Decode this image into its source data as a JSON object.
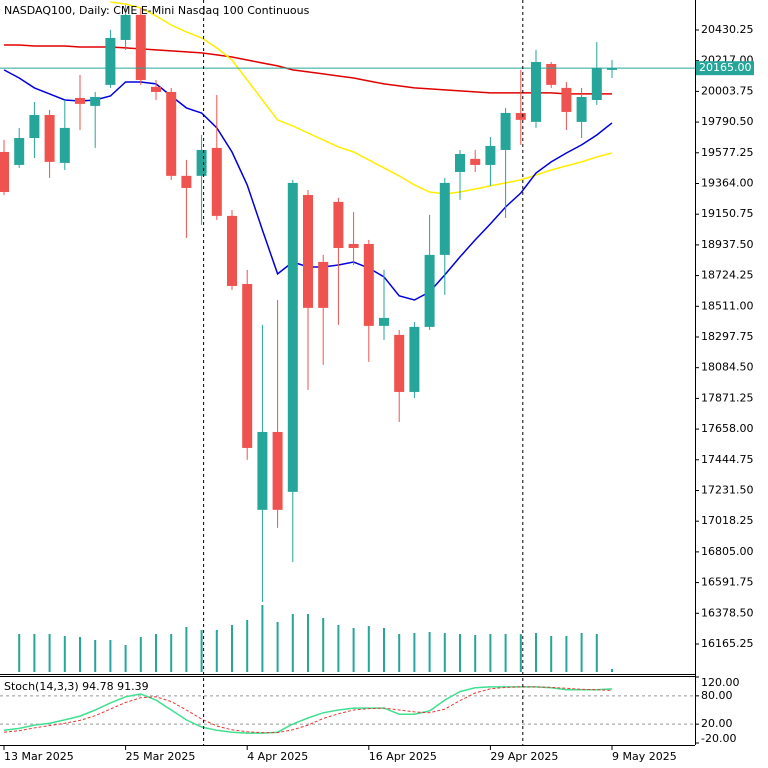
{
  "chart_data": [
    {
      "type": "candlestick",
      "title": "NASDAQ100, Daily:  CME E-Mini Nasdaq 100 Continuous",
      "categories": [
        "13 Mar 2025",
        null,
        null,
        null,
        null,
        null,
        null,
        null,
        "25 Mar 2025",
        null,
        null,
        null,
        null,
        null,
        null,
        null,
        "4 Apr 2025",
        null,
        null,
        null,
        null,
        null,
        null,
        null,
        "16 Apr 2025",
        null,
        null,
        null,
        null,
        null,
        null,
        null,
        "29 Apr 2025",
        null,
        null,
        null,
        null,
        null,
        null,
        null,
        "9 May 2025"
      ],
      "open": [
        19583,
        19493,
        19680,
        19840,
        19507,
        19958,
        19903,
        20049,
        20361,
        20535,
        20035,
        20000,
        19417,
        19417,
        19611,
        19139,
        18666,
        17097,
        17638,
        17222,
        19284,
        18819,
        19236,
        18944,
        18944,
        18375,
        18312,
        17916,
        18368,
        18868,
        19444,
        19535,
        19493,
        19597,
        19854,
        19792,
        20194,
        20028,
        19792,
        19944,
        20153
      ],
      "high": [
        19667,
        19750,
        19930,
        19875,
        19944,
        20118,
        20000,
        20431,
        20604,
        20583,
        20083,
        20028,
        19528,
        19701,
        19979,
        19180,
        18764,
        18382,
        18555,
        19389,
        19319,
        18868,
        19264,
        19166,
        18972,
        18764,
        18347,
        18402,
        19146,
        19403,
        19597,
        19597,
        19687,
        19889,
        20153,
        20292,
        20208,
        20069,
        20028,
        20347,
        20222
      ],
      "low": [
        19284,
        19472,
        19541,
        19403,
        19458,
        19736,
        19611,
        20028,
        20292,
        20049,
        19944,
        19389,
        18986,
        19076,
        19111,
        18625,
        17444,
        16458,
        16972,
        16735,
        17930,
        18104,
        18382,
        18798,
        18125,
        18277,
        17708,
        17874,
        18347,
        18590,
        19250,
        19444,
        19347,
        19125,
        19632,
        19750,
        20028,
        19736,
        19680,
        19910,
        20097
      ],
      "close": [
        19305,
        19680,
        19840,
        19514,
        19750,
        19917,
        19965,
        20375,
        20535,
        20083,
        20000,
        19417,
        19333,
        19597,
        19139,
        18652,
        17527,
        17638,
        17097,
        19368,
        18500,
        18500,
        18916,
        18916,
        18375,
        18430,
        17916,
        18368,
        18868,
        19368,
        19569,
        19493,
        19625,
        19854,
        19806,
        20208,
        20049,
        19861,
        19965,
        20167,
        20165
      ],
      "up_color": "#26a69a",
      "down_color": "#ef5350",
      "series": [
        {
          "color": "#e00000",
          "values": [
            20326,
            20326,
            20319,
            20319,
            20319,
            20312,
            20312,
            20312,
            20306,
            20299,
            20292,
            20285,
            20278,
            20271,
            20257,
            20243,
            20222,
            20201,
            20181,
            20153,
            20139,
            20125,
            20111,
            20097,
            20076,
            20056,
            20042,
            20028,
            20021,
            20014,
            20007,
            20000,
            19993,
            19993,
            19993,
            19993,
            19993,
            19986,
            19986,
            19986,
            19986
          ]
        },
        {
          "color": "#ffee00",
          "values": [
            null,
            null,
            null,
            null,
            null,
            null,
            null,
            20625,
            20611,
            20583,
            20528,
            20465,
            20417,
            20375,
            20306,
            20222,
            20083,
            19944,
            19806,
            19764,
            19715,
            19667,
            19618,
            19583,
            19528,
            19472,
            19417,
            19354,
            19305,
            19292,
            19305,
            19326,
            19347,
            19368,
            19389,
            19423,
            19458,
            19486,
            19514,
            19548,
            19576
          ]
        },
        {
          "color": "#0000dd",
          "values": [
            20153,
            20097,
            20028,
            19986,
            19944,
            19937,
            19944,
            19972,
            20069,
            20069,
            20056,
            19972,
            19889,
            19854,
            19750,
            19583,
            19354,
            19041,
            18736,
            18819,
            18784,
            18784,
            18798,
            18819,
            18777,
            18715,
            18583,
            18555,
            18611,
            18729,
            18854,
            18972,
            19083,
            19201,
            19298,
            19437,
            19514,
            19576,
            19632,
            19701,
            19785
          ]
        }
      ],
      "volume": {
        "color": "#26a69a",
        "values": [
          null,
          38,
          38,
          38,
          36,
          35,
          32,
          32,
          27,
          35,
          38,
          38,
          45,
          42,
          42,
          47,
          52,
          67,
          50,
          58,
          58,
          54,
          47,
          44,
          46,
          44,
          38,
          39,
          40,
          39,
          38,
          37,
          38,
          38,
          38,
          39,
          36,
          36,
          39,
          38,
          3
        ]
      },
      "last_price": {
        "value": 20165,
        "label": "20165.00",
        "color": "#26a69a"
      },
      "ylim": [
        15963.7,
        20638.6
      ],
      "yticks": [
        20430.25,
        {
          "value": 20217,
          "label": "20217.00"
        },
        20003.75,
        {
          "value": 19790.5,
          "label": "19790.50"
        },
        19577.25,
        {
          "value": 19364,
          "label": "19364.00"
        },
        19150.75,
        {
          "value": 18937.5,
          "label": "18937.50"
        },
        18724.25,
        {
          "value": 18511,
          "label": "18511.00"
        },
        18297.75,
        {
          "value": 18084.5,
          "label": "18084.50"
        },
        17871.25,
        {
          "value": 17658,
          "label": "17658.00"
        },
        17444.75,
        {
          "value": 17231.5,
          "label": "17231.50"
        },
        17018.25,
        {
          "value": 16805,
          "label": "16805.00"
        },
        16591.75,
        {
          "value": 16378.5,
          "label": "16378.50"
        },
        16165.25
      ]
    },
    {
      "type": "line",
      "title": "Stoch(14,3,3) 94.78 91.39",
      "ylim": [
        -20,
        120
      ],
      "yticks": [
        {
          "value": 120,
          "label": "120.00"
        },
        {
          "value": 80,
          "label": "80.00"
        },
        {
          "value": 20,
          "label": "20.00"
        },
        {
          "value": -20,
          "label": "-20.00"
        }
      ],
      "levels": [
        80,
        20
      ],
      "series": [
        {
          "color": "#40e090",
          "values": [
            7,
            11,
            18,
            22,
            29,
            37,
            50,
            65,
            78,
            84,
            71,
            50,
            29,
            14,
            7,
            3,
            1,
            1,
            3,
            20,
            33,
            44,
            50,
            54,
            54,
            54,
            41,
            41,
            48,
            71,
            89,
            97,
            99,
            99,
            99,
            99,
            97,
            93,
            93,
            93,
            94.78
          ]
        },
        {
          "color": "#e53935",
          "dashed": true,
          "values": [
            3,
            6,
            12,
            17,
            22,
            28,
            38,
            52,
            66,
            76,
            78,
            68,
            50,
            31,
            16,
            8,
            4,
            2,
            2,
            8,
            18,
            32,
            42,
            50,
            53,
            54,
            50,
            46,
            44,
            52,
            70,
            86,
            95,
            98,
            99,
            99,
            98,
            96,
            94,
            93,
            91.39
          ]
        }
      ]
    }
  ]
}
